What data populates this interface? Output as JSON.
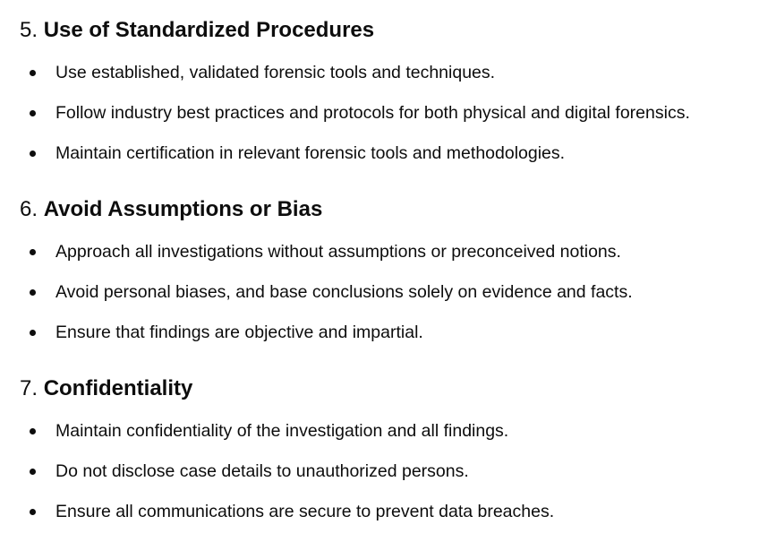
{
  "sections": [
    {
      "number": "5.",
      "title": "Use of Standardized Procedures",
      "items": [
        "Use established, validated forensic tools and techniques.",
        "Follow industry best practices and protocols for both physical and digital forensics.",
        "Maintain certification in relevant forensic tools and methodologies."
      ]
    },
    {
      "number": "6.",
      "title": "Avoid Assumptions or Bias",
      "items": [
        "Approach all investigations without assumptions or preconceived notions.",
        "Avoid personal biases, and base conclusions solely on evidence and facts.",
        "Ensure that findings are objective and impartial."
      ]
    },
    {
      "number": "7.",
      "title": "Confidentiality",
      "items": [
        "Maintain confidentiality of the investigation and all findings.",
        "Do not disclose case details to unauthorized persons.",
        "Ensure all communications are secure to prevent data breaches."
      ]
    }
  ]
}
